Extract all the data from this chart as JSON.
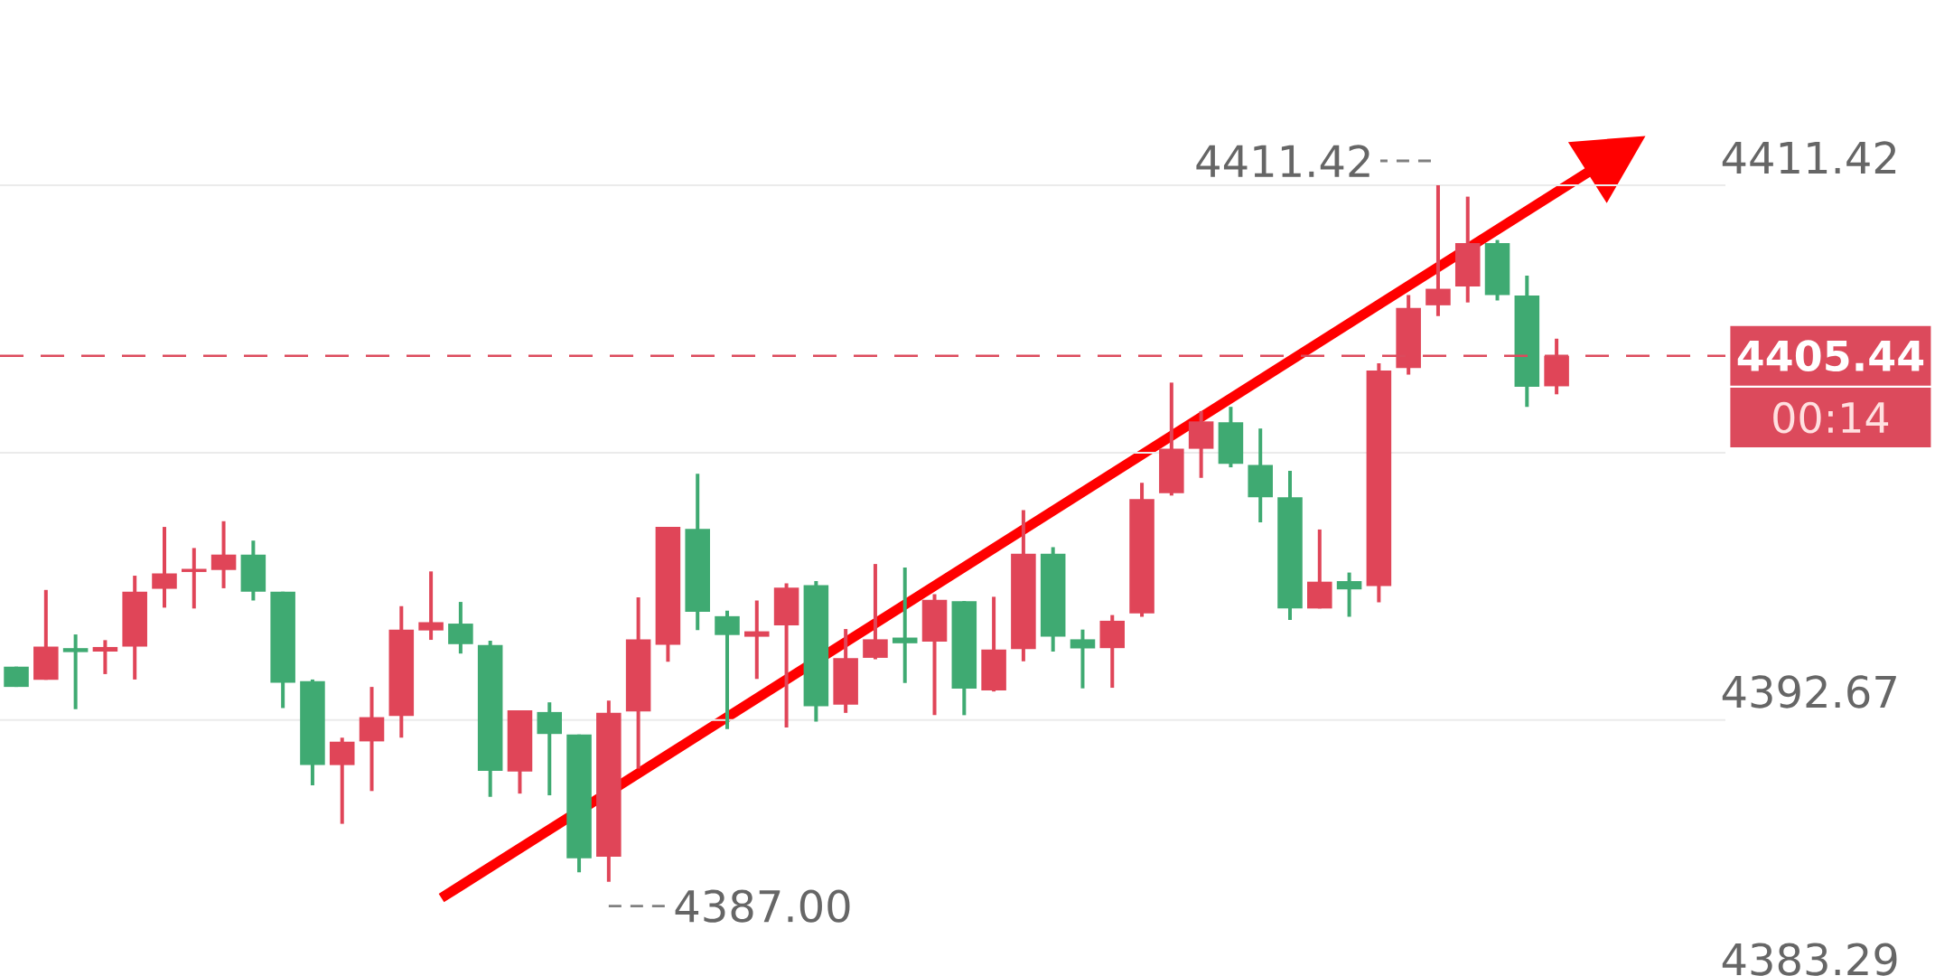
{
  "chart_data": {
    "type": "candlestick",
    "categories": [
      null,
      null,
      null,
      null,
      null,
      null,
      null,
      null,
      null,
      null,
      null,
      null,
      null,
      null,
      null,
      null,
      null,
      null,
      null,
      null,
      null,
      null,
      null,
      null,
      null,
      null,
      null,
      null,
      null,
      null,
      null,
      null,
      null,
      null,
      null,
      null,
      null,
      null,
      null,
      null,
      null,
      null,
      null,
      null,
      null,
      null,
      null,
      null,
      null,
      null,
      null,
      null,
      null
    ],
    "ohlc": [
      [
        4394.54,
        4394.54,
        4393.83,
        4393.83
      ],
      [
        4394.08,
        4397.23,
        4394.08,
        4395.24
      ],
      [
        4395.19,
        4395.67,
        4393.05,
        4395.05
      ],
      [
        4395.07,
        4395.47,
        4394.28,
        4395.23
      ],
      [
        4395.24,
        4397.73,
        4394.09,
        4397.17
      ],
      [
        4397.27,
        4399.44,
        4396.61,
        4397.81
      ],
      [
        4397.86,
        4398.7,
        4396.58,
        4397.97
      ],
      [
        4397.93,
        4399.64,
        4397.29,
        4398.47
      ],
      [
        4398.47,
        4398.96,
        4396.86,
        4397.17
      ],
      [
        4397.17,
        4397.17,
        4393.09,
        4393.98
      ],
      [
        4394.03,
        4394.09,
        4390.38,
        4391.09
      ],
      [
        4391.09,
        4392.05,
        4389.03,
        4391.91
      ],
      [
        4391.92,
        4393.83,
        4390.18,
        4392.77
      ],
      [
        4392.81,
        4396.66,
        4392.05,
        4395.84
      ],
      [
        4395.81,
        4397.88,
        4395.48,
        4396.1
      ],
      [
        4396.05,
        4396.81,
        4395.0,
        4395.33
      ],
      [
        4395.3,
        4395.45,
        4389.98,
        4390.89
      ],
      [
        4390.86,
        4393.01,
        4390.09,
        4393.01
      ],
      [
        4392.95,
        4393.29,
        4390.03,
        4392.18
      ],
      [
        4392.16,
        4392.16,
        4387.33,
        4387.82
      ],
      [
        4387.88,
        4393.35,
        4387.0,
        4392.92
      ],
      [
        4392.97,
        4396.97,
        4390.97,
        4395.5
      ],
      [
        4395.31,
        4399.44,
        4394.71,
        4399.44
      ],
      [
        4399.37,
        4401.3,
        4395.82,
        4396.46
      ],
      [
        4396.31,
        4396.5,
        4392.35,
        4395.65
      ],
      [
        4395.59,
        4396.86,
        4394.11,
        4395.78
      ],
      [
        4395.99,
        4397.46,
        4392.41,
        4397.31
      ],
      [
        4397.4,
        4397.54,
        4392.61,
        4393.15
      ],
      [
        4393.21,
        4395.86,
        4392.92,
        4394.84
      ],
      [
        4394.85,
        4398.14,
        4394.8,
        4395.5
      ],
      [
        4395.56,
        4398.02,
        4393.97,
        4395.36
      ],
      [
        4395.42,
        4397.08,
        4392.84,
        4396.88
      ],
      [
        4396.84,
        4396.84,
        4392.84,
        4393.77
      ],
      [
        4393.71,
        4396.99,
        4393.67,
        4395.14
      ],
      [
        4395.16,
        4400.03,
        4394.73,
        4398.5
      ],
      [
        4398.5,
        4398.73,
        4395.07,
        4395.59
      ],
      [
        4395.5,
        4395.84,
        4393.78,
        4395.18
      ],
      [
        4395.19,
        4396.35,
        4393.8,
        4396.15
      ],
      [
        4396.41,
        4400.99,
        4396.29,
        4400.42
      ],
      [
        4400.62,
        4404.5,
        4400.54,
        4402.18
      ],
      [
        4402.18,
        4403.5,
        4401.16,
        4403.14
      ],
      [
        4403.11,
        4403.65,
        4401.53,
        4401.65
      ],
      [
        4401.61,
        4402.89,
        4399.6,
        4400.48
      ],
      [
        4400.48,
        4401.41,
        4396.18,
        4396.58
      ],
      [
        4396.58,
        4399.35,
        4396.58,
        4397.52
      ],
      [
        4397.54,
        4397.84,
        4396.29,
        4397.25
      ],
      [
        4397.37,
        4405.18,
        4396.8,
        4404.92
      ],
      [
        4405.01,
        4407.57,
        4404.78,
        4407.12
      ],
      [
        4407.21,
        4411.42,
        4406.83,
        4407.79
      ],
      [
        4407.87,
        4411.02,
        4407.31,
        4409.39
      ],
      [
        4409.39,
        4409.5,
        4407.38,
        4407.57
      ],
      [
        4407.55,
        4408.25,
        4403.65,
        4404.35
      ],
      [
        4404.37,
        4406.04,
        4404.09,
        4405.44
      ]
    ],
    "colors": [
      "#3faa72",
      "#e04558",
      "#3faa72",
      "#e04558",
      "#e04558",
      "#e04558",
      "#e04558",
      "#e04558",
      "#3faa72",
      "#3faa72",
      "#3faa72",
      "#e04558",
      "#e04558",
      "#e04558",
      "#e04558",
      "#3faa72",
      "#3faa72",
      "#e04558",
      "#3faa72",
      "#3faa72",
      "#e04558",
      "#e04558",
      "#e04558",
      "#3faa72",
      "#3faa72",
      "#e04558",
      "#e04558",
      "#3faa72",
      "#e04558",
      "#e04558",
      "#3faa72",
      "#e04558",
      "#3faa72",
      "#e04558",
      "#e04558",
      "#3faa72",
      "#3faa72",
      "#e04558",
      "#e04558",
      "#e04558",
      "#e04558",
      "#3faa72",
      "#3faa72",
      "#3faa72",
      "#e04558",
      "#3faa72",
      "#e04558",
      "#e04558",
      "#e04558",
      "#e04558",
      "#3faa72",
      "#3faa72",
      "#e04558"
    ],
    "ylim": [
      4383.29,
      4411.42
    ],
    "yticks": [
      4411.42,
      {
        "value": 4402.04,
        "label": null
      },
      4392.67,
      4383.29
    ],
    "grid": "y",
    "tick_labels": "y",
    "ref_lines": [
      {
        "axis": "y",
        "value": 4405.44,
        "label": "4405.44",
        "color": "#dc4a5c",
        "line_style": "dashed"
      }
    ],
    "annotations": [
      "4411.42",
      "4387.00",
      "00:14"
    ]
  }
}
